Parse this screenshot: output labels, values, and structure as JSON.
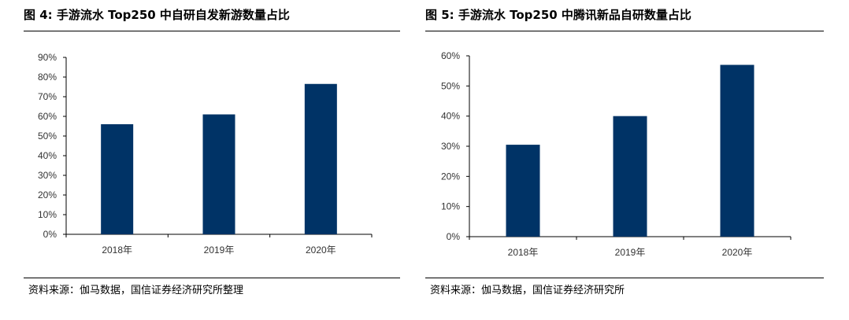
{
  "charts": {
    "left": {
      "title": "图 4:  手游流水 Top250 中自研自发新游数量占比",
      "source": "资料来源：伽马数据，国信证券经济研究所整理"
    },
    "right": {
      "title": "图 5:  手游流水 Top250 中腾讯新品自研数量占比",
      "source": "资料来源：伽马数据，国信证券经济研究所"
    }
  },
  "chart_data": [
    {
      "type": "bar",
      "title": "图 4:  手游流水 Top250 中自研自发新游数量占比",
      "categories": [
        "2018年",
        "2019年",
        "2020年"
      ],
      "values": [
        56,
        61,
        76.5
      ],
      "yticks": [
        "0%",
        "10%",
        "20%",
        "30%",
        "40%",
        "50%",
        "60%",
        "70%",
        "80%",
        "90%"
      ],
      "ylim": [
        0,
        90
      ],
      "unit": "%",
      "bar_color": "#003366",
      "grid": false
    },
    {
      "type": "bar",
      "title": "图 5:  手游流水 Top250 中腾讯新品自研数量占比",
      "categories": [
        "2018年",
        "2019年",
        "2020年"
      ],
      "values": [
        30.5,
        40,
        57
      ],
      "yticks": [
        "0%",
        "10%",
        "20%",
        "30%",
        "40%",
        "50%",
        "60%"
      ],
      "ylim": [
        0,
        60
      ],
      "unit": "%",
      "bar_color": "#003366",
      "grid": false
    }
  ]
}
